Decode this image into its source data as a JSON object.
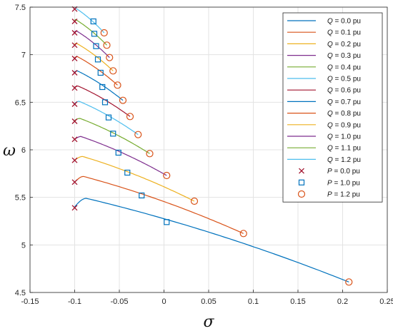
{
  "chart_data": {
    "type": "line",
    "title": "",
    "xlabel": "σ",
    "ylabel": "ω",
    "xlim": [
      -0.15,
      0.25
    ],
    "ylim": [
      4.5,
      7.5
    ],
    "grid": true,
    "legend_position": "right",
    "x_ticks": [
      "-0.15",
      "-0.1",
      "-0.05",
      "0",
      "0.05",
      "0.1",
      "0.15",
      "0.2",
      "0.25"
    ],
    "y_ticks": [
      "4.5",
      "5",
      "5.5",
      "6",
      "6.5",
      "7",
      "7.5"
    ],
    "series": [
      {
        "name": "Q = 0.0 pu",
        "var": "Q",
        "val": "= 0.0 pu",
        "color": "#0072BD",
        "start": [
          -0.1,
          5.4
        ],
        "peak": [
          -0.087,
          5.49
        ],
        "end": [
          0.207,
          4.61
        ]
      },
      {
        "name": "Q = 0.1 pu",
        "var": "Q",
        "val": "= 0.1 pu",
        "color": "#D95319",
        "start": [
          -0.1,
          5.66
        ],
        "peak": [
          -0.09,
          5.72
        ],
        "end": [
          0.089,
          5.12
        ]
      },
      {
        "name": "Q = 0.2 pu",
        "var": "Q",
        "val": "= 0.2 pu",
        "color": "#EDB120",
        "start": [
          -0.1,
          5.89
        ],
        "peak": [
          -0.091,
          5.93
        ],
        "end": [
          0.034,
          5.46
        ]
      },
      {
        "name": "Q = 0.3 pu",
        "var": "Q",
        "val": "= 0.3 pu",
        "color": "#7E2F8E",
        "start": [
          -0.1,
          6.11
        ],
        "peak": [
          -0.093,
          6.14
        ],
        "end": [
          0.003,
          5.73
        ]
      },
      {
        "name": "Q = 0.4 pu",
        "var": "Q",
        "val": "= 0.4 pu",
        "color": "#77AC30",
        "start": [
          -0.1,
          6.31
        ],
        "peak": [
          -0.094,
          6.33
        ],
        "end": [
          -0.016,
          5.96
        ]
      },
      {
        "name": "Q = 0.5 pu",
        "var": "Q",
        "val": "= 0.5 pu",
        "color": "#4DBEEE",
        "start": [
          -0.1,
          6.49
        ],
        "peak": [
          -0.095,
          6.51
        ],
        "end": [
          -0.029,
          6.16
        ]
      },
      {
        "name": "Q = 0.6 pu",
        "var": "Q",
        "val": "= 0.6 pu",
        "color": "#A2142F",
        "start": [
          -0.1,
          6.66
        ],
        "peak": [
          -0.096,
          6.67
        ],
        "end": [
          -0.038,
          6.35
        ]
      },
      {
        "name": "Q = 0.7 pu",
        "var": "Q",
        "val": "= 0.7 pu",
        "color": "#0072BD",
        "start": [
          -0.1,
          6.82
        ],
        "peak": [
          -0.097,
          6.83
        ],
        "end": [
          -0.046,
          6.52
        ]
      },
      {
        "name": "Q = 0.8 pu",
        "var": "Q",
        "val": "= 0.8 pu",
        "color": "#D95319",
        "start": [
          -0.1,
          6.97
        ],
        "peak": [
          -0.097,
          6.98
        ],
        "end": [
          -0.052,
          6.68
        ]
      },
      {
        "name": "Q = 0.9 pu",
        "var": "Q",
        "val": "= 0.9 pu",
        "color": "#EDB120",
        "start": [
          -0.1,
          7.11
        ],
        "peak": [
          -0.098,
          7.12
        ],
        "end": [
          -0.057,
          6.83
        ]
      },
      {
        "name": "Q = 1.0 pu",
        "var": "Q",
        "val": "= 1.0 pu",
        "color": "#7E2F8E",
        "start": [
          -0.1,
          7.24
        ],
        "peak": [
          -0.098,
          7.25
        ],
        "end": [
          -0.061,
          6.97
        ]
      },
      {
        "name": "Q = 1.1 pu",
        "var": "Q",
        "val": "= 1.1 pu",
        "color": "#77AC30",
        "start": [
          -0.1,
          7.36
        ],
        "peak": [
          -0.099,
          7.37
        ],
        "end": [
          -0.064,
          7.1
        ]
      },
      {
        "name": "Q = 1.2 pu",
        "var": "Q",
        "val": "= 1.2 pu",
        "color": "#4DBEEE",
        "start": [
          -0.1,
          7.48
        ],
        "peak": [
          -0.099,
          7.49
        ],
        "end": [
          -0.067,
          7.23
        ]
      }
    ],
    "markers": [
      {
        "name": "P = 0.0 pu",
        "var": "P",
        "val": "= 0.0 pu",
        "shape": "x",
        "color": "#A2142F",
        "points": [
          [
            -0.1,
            5.39
          ],
          [
            -0.1,
            5.66
          ],
          [
            -0.1,
            5.89
          ],
          [
            -0.1,
            6.11
          ],
          [
            -0.1,
            6.3
          ],
          [
            -0.1,
            6.48
          ],
          [
            -0.1,
            6.65
          ],
          [
            -0.1,
            6.81
          ],
          [
            -0.1,
            6.96
          ],
          [
            -0.1,
            7.1
          ],
          [
            -0.1,
            7.23
          ],
          [
            -0.1,
            7.35
          ],
          [
            -0.1,
            7.48
          ]
        ]
      },
      {
        "name": "P = 1.0 pu",
        "var": "P",
        "val": "= 1.0 pu",
        "shape": "square",
        "color": "#0072BD",
        "points": [
          [
            0.003,
            5.24
          ],
          [
            -0.025,
            5.52
          ],
          [
            -0.041,
            5.76
          ],
          [
            -0.051,
            5.97
          ],
          [
            -0.057,
            6.17
          ],
          [
            -0.062,
            6.34
          ],
          [
            -0.066,
            6.5
          ],
          [
            -0.069,
            6.66
          ],
          [
            -0.071,
            6.81
          ],
          [
            -0.074,
            6.95
          ],
          [
            -0.076,
            7.09
          ],
          [
            -0.078,
            7.22
          ],
          [
            -0.079,
            7.35
          ]
        ]
      },
      {
        "name": "P = 1.2 pu",
        "var": "P",
        "val": "= 1.2 pu",
        "shape": "circle",
        "color": "#D95319",
        "points": [
          [
            0.207,
            4.61
          ],
          [
            0.089,
            5.12
          ],
          [
            0.034,
            5.46
          ],
          [
            0.003,
            5.73
          ],
          [
            -0.016,
            5.96
          ],
          [
            -0.029,
            6.16
          ],
          [
            -0.038,
            6.35
          ],
          [
            -0.046,
            6.52
          ],
          [
            -0.052,
            6.68
          ],
          [
            -0.057,
            6.83
          ],
          [
            -0.061,
            6.97
          ],
          [
            -0.064,
            7.1
          ],
          [
            -0.067,
            7.23
          ]
        ]
      }
    ]
  }
}
